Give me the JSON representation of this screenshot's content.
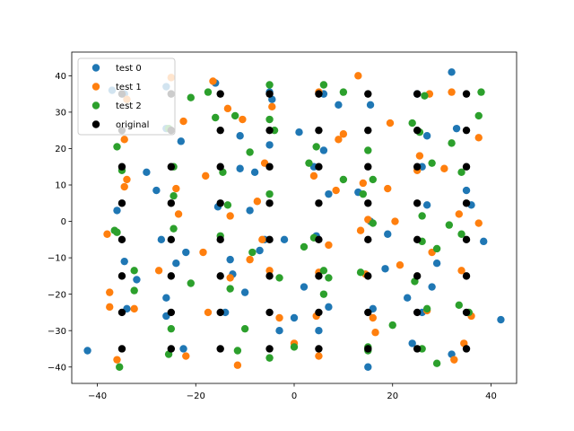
{
  "chart_data": {
    "type": "scatter",
    "title": "",
    "xlabel": "",
    "ylabel": "",
    "xlim": [
      -45.2,
      45.2
    ],
    "ylim": [
      -44.5,
      46.5
    ],
    "xticks": [
      -40,
      -20,
      0,
      20,
      40
    ],
    "yticks": [
      -40,
      -30,
      -20,
      -10,
      0,
      10,
      20,
      30,
      40
    ],
    "grid": false,
    "legend_position": "upper-left",
    "series": [
      {
        "name": "test 0",
        "color": "#1f77b4",
        "points": [
          [
            -42,
            -35.5
          ],
          [
            -37,
            36
          ],
          [
            -36,
            3
          ],
          [
            -34.5,
            35
          ],
          [
            -34.5,
            -11
          ],
          [
            -34,
            -24
          ],
          [
            -32,
            -16
          ],
          [
            -30,
            13.5
          ],
          [
            -28,
            8.5
          ],
          [
            -27,
            -5
          ],
          [
            -26,
            37
          ],
          [
            -26,
            25.5
          ],
          [
            -26,
            -21
          ],
          [
            -26,
            -26
          ],
          [
            -24,
            -11.5
          ],
          [
            -23,
            22
          ],
          [
            -22.5,
            -35
          ],
          [
            -22,
            -8.5
          ],
          [
            -16,
            38
          ],
          [
            -15.5,
            4
          ],
          [
            -14,
            -25
          ],
          [
            -13,
            -10.5
          ],
          [
            -12.5,
            -14.5
          ],
          [
            -11,
            23.5
          ],
          [
            -11,
            14.5
          ],
          [
            -10,
            -19.5
          ],
          [
            -9,
            3
          ],
          [
            -8,
            13.5
          ],
          [
            -7,
            -8
          ],
          [
            -6,
            -5
          ],
          [
            -5,
            35.5
          ],
          [
            -5,
            21
          ],
          [
            -4.5,
            33.5
          ],
          [
            -3,
            -30
          ],
          [
            -2,
            -5
          ],
          [
            0,
            -26.5
          ],
          [
            1,
            24.5
          ],
          [
            2,
            -18
          ],
          [
            4,
            15
          ],
          [
            4.5,
            -4
          ],
          [
            5,
            -30
          ],
          [
            6,
            35
          ],
          [
            6,
            19.5
          ],
          [
            7,
            7.5
          ],
          [
            7,
            -23.5
          ],
          [
            9,
            32
          ],
          [
            13,
            8
          ],
          [
            15,
            -40
          ],
          [
            15.5,
            32
          ],
          [
            15.5,
            0
          ],
          [
            16,
            -24
          ],
          [
            19,
            -3.5
          ],
          [
            18.5,
            -13
          ],
          [
            23,
            -21
          ],
          [
            24,
            -33.5
          ],
          [
            25,
            35
          ],
          [
            26,
            15
          ],
          [
            26,
            -25
          ],
          [
            27,
            23.5
          ],
          [
            27,
            4.5
          ],
          [
            28,
            -18
          ],
          [
            29,
            -11.5
          ],
          [
            32,
            41
          ],
          [
            32,
            -36.5
          ],
          [
            33,
            25.5
          ],
          [
            35,
            8.5
          ],
          [
            36,
            4.5
          ],
          [
            38.5,
            -5.5
          ],
          [
            42,
            -27
          ]
        ]
      },
      {
        "name": "test 1",
        "color": "#ff7f0e",
        "points": [
          [
            -38,
            -3.5
          ],
          [
            -37.5,
            -19.5
          ],
          [
            -37.5,
            -23.5
          ],
          [
            -36,
            -38
          ],
          [
            -34.5,
            22.5
          ],
          [
            -34.5,
            9.5
          ],
          [
            -34,
            11.5
          ],
          [
            -34,
            33.5
          ],
          [
            -32.5,
            -24
          ],
          [
            -27.5,
            -13.5
          ],
          [
            -25,
            39.5
          ],
          [
            -24,
            9
          ],
          [
            -23.5,
            2
          ],
          [
            -22.5,
            27.5
          ],
          [
            -22,
            -37
          ],
          [
            -18.5,
            -8.5
          ],
          [
            -18,
            12.5
          ],
          [
            -17.5,
            -25
          ],
          [
            -16.5,
            38.5
          ],
          [
            -13.5,
            31
          ],
          [
            -13,
            1.5
          ],
          [
            -13,
            -15.5
          ],
          [
            -11.5,
            -39.5
          ],
          [
            -10.5,
            28
          ],
          [
            -9,
            -10.5
          ],
          [
            -7.5,
            5.5
          ],
          [
            -6,
            16
          ],
          [
            -6.5,
            -5
          ],
          [
            -4.5,
            31.5
          ],
          [
            -5,
            -13.5
          ],
          [
            -3,
            -26.5
          ],
          [
            0,
            -33.5
          ],
          [
            4,
            12.5
          ],
          [
            4.5,
            -26
          ],
          [
            5,
            35.5
          ],
          [
            5,
            -14
          ],
          [
            5,
            -37
          ],
          [
            7,
            -6.5
          ],
          [
            8.5,
            8.5
          ],
          [
            9,
            22.5
          ],
          [
            10,
            24
          ],
          [
            13,
            40
          ],
          [
            13.5,
            -2.5
          ],
          [
            14,
            10.5
          ],
          [
            14.5,
            -14.5
          ],
          [
            15,
            0.5
          ],
          [
            16,
            -26.5
          ],
          [
            16.5,
            -30.5
          ],
          [
            19,
            9
          ],
          [
            19.5,
            27
          ],
          [
            20.5,
            0
          ],
          [
            21.5,
            -12
          ],
          [
            25,
            14
          ],
          [
            25.5,
            18
          ],
          [
            27.5,
            35
          ],
          [
            28,
            -8.5
          ],
          [
            30.5,
            14.5
          ],
          [
            32,
            35.5
          ],
          [
            32.5,
            -38
          ],
          [
            33.5,
            2
          ],
          [
            34,
            -13.5
          ],
          [
            34.5,
            -33.5
          ],
          [
            36,
            -26
          ],
          [
            37.5,
            23
          ],
          [
            37.5,
            -0.5
          ],
          [
            27,
            -24.5
          ]
        ]
      },
      {
        "name": "test 2",
        "color": "#2ca02c",
        "points": [
          [
            -36.5,
            -2.5
          ],
          [
            -36,
            -3
          ],
          [
            -36,
            20.5
          ],
          [
            -35.5,
            -40
          ],
          [
            -35,
            14
          ],
          [
            -32.5,
            -19
          ],
          [
            -32.5,
            -13.5
          ],
          [
            -25.5,
            25.5
          ],
          [
            -25.5,
            -36.5
          ],
          [
            -25,
            -29.5
          ],
          [
            -24.5,
            15
          ],
          [
            -24.5,
            7
          ],
          [
            -24.5,
            -2
          ],
          [
            -21,
            34
          ],
          [
            -21,
            -17
          ],
          [
            -17.5,
            35.5
          ],
          [
            -16,
            28.5
          ],
          [
            -15,
            -4
          ],
          [
            -14.5,
            13.5
          ],
          [
            -13.5,
            4.5
          ],
          [
            -13,
            -18.5
          ],
          [
            -12,
            29
          ],
          [
            -11.5,
            -35.5
          ],
          [
            -10,
            -29.5
          ],
          [
            -9,
            19
          ],
          [
            -8.5,
            -8.5
          ],
          [
            -5,
            37.5
          ],
          [
            -5,
            28
          ],
          [
            -5,
            7.5
          ],
          [
            -5,
            -37.5
          ],
          [
            -4,
            25
          ],
          [
            -3,
            -15.5
          ],
          [
            0,
            -34.5
          ],
          [
            2,
            -7
          ],
          [
            3,
            16
          ],
          [
            4,
            -4.5
          ],
          [
            4.5,
            20.5
          ],
          [
            6,
            37.5
          ],
          [
            6,
            -13.5
          ],
          [
            6,
            -20
          ],
          [
            7,
            -15.5
          ],
          [
            10,
            35.5
          ],
          [
            10,
            11.5
          ],
          [
            13.5,
            -14
          ],
          [
            14,
            7.5
          ],
          [
            15,
            19.5
          ],
          [
            15,
            -34.5
          ],
          [
            16,
            11.5
          ],
          [
            16,
            -0.5
          ],
          [
            20,
            -28.5
          ],
          [
            24,
            27
          ],
          [
            24.5,
            -16.5
          ],
          [
            25.5,
            24.5
          ],
          [
            26,
            1.5
          ],
          [
            26,
            -5.5
          ],
          [
            26,
            -35
          ],
          [
            26.5,
            34.5
          ],
          [
            27,
            -24
          ],
          [
            28,
            16
          ],
          [
            29,
            -7.5
          ],
          [
            29,
            -39
          ],
          [
            31.5,
            -1
          ],
          [
            33.5,
            -23
          ],
          [
            34,
            13.5
          ],
          [
            34,
            -3.5
          ],
          [
            35.5,
            -25
          ],
          [
            37.5,
            29
          ],
          [
            38,
            35.5
          ],
          [
            32,
            21.5
          ],
          [
            15,
            -35.5
          ]
        ]
      },
      {
        "name": "original",
        "color": "#000000",
        "points": [
          [
            -35,
            35
          ],
          [
            -35,
            25
          ],
          [
            -35,
            15
          ],
          [
            -35,
            5
          ],
          [
            -35,
            -5
          ],
          [
            -35,
            -15
          ],
          [
            -35,
            -25
          ],
          [
            -35,
            -35
          ],
          [
            -25,
            35
          ],
          [
            -25,
            25
          ],
          [
            -25,
            15
          ],
          [
            -25,
            5
          ],
          [
            -25,
            -5
          ],
          [
            -25,
            -15
          ],
          [
            -25,
            -25
          ],
          [
            -25,
            -35
          ],
          [
            -15,
            35
          ],
          [
            -15,
            25
          ],
          [
            -15,
            15
          ],
          [
            -15,
            5
          ],
          [
            -15,
            -5
          ],
          [
            -15,
            -15
          ],
          [
            -15,
            -25
          ],
          [
            -15,
            -35
          ],
          [
            -5,
            35
          ],
          [
            -5,
            25
          ],
          [
            -5,
            15
          ],
          [
            -5,
            5
          ],
          [
            -5,
            -5
          ],
          [
            -5,
            -15
          ],
          [
            -5,
            -25
          ],
          [
            -5,
            -35
          ],
          [
            5,
            35
          ],
          [
            5,
            25
          ],
          [
            5,
            15
          ],
          [
            5,
            5
          ],
          [
            5,
            -5
          ],
          [
            5,
            -15
          ],
          [
            5,
            -25
          ],
          [
            5,
            -35
          ],
          [
            15,
            35
          ],
          [
            15,
            25
          ],
          [
            15,
            15
          ],
          [
            15,
            5
          ],
          [
            15,
            -5
          ],
          [
            15,
            -15
          ],
          [
            15,
            -25
          ],
          [
            15,
            -35
          ],
          [
            25,
            35
          ],
          [
            25,
            25
          ],
          [
            25,
            15
          ],
          [
            25,
            5
          ],
          [
            25,
            -5
          ],
          [
            25,
            -15
          ],
          [
            25,
            -25
          ],
          [
            25,
            -35
          ],
          [
            35,
            35
          ],
          [
            35,
            25
          ],
          [
            35,
            15
          ],
          [
            35,
            5
          ],
          [
            35,
            -5
          ],
          [
            35,
            -15
          ],
          [
            35,
            -25
          ],
          [
            35,
            -35
          ]
        ]
      }
    ]
  }
}
